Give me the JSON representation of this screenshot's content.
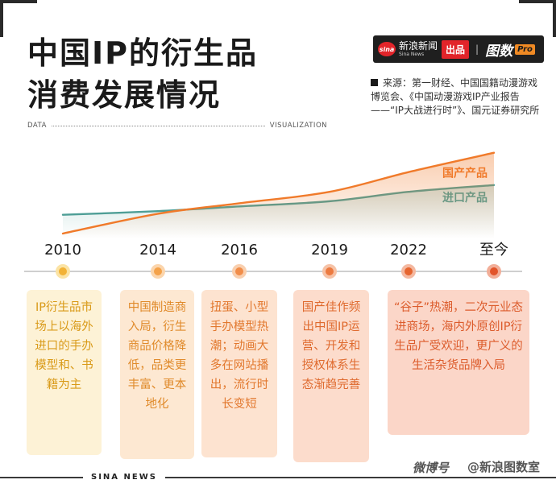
{
  "title": {
    "line1": "中国IP的衍生品",
    "line2": "消费发展情况"
  },
  "brand": {
    "sina_logo": "sina",
    "sina_cn": "新浪新闻",
    "sina_en": "Sina News",
    "chupin": "出品",
    "separator": "|",
    "tushu": "图数",
    "pro": "Pro"
  },
  "source": {
    "text": "来源：第一财经、中国国籍动漫游戏博览会、《中国动漫游戏IP产业报告——“IP大战进行时”》、国元证券研究所"
  },
  "data_row": {
    "left": "DATA",
    "right": "VISUALIZATION"
  },
  "chart_data": {
    "type": "area",
    "x": [
      "2010",
      "2014",
      "2016",
      "2019",
      "2022",
      "至今"
    ],
    "series": [
      {
        "name": "国产产品",
        "values": [
          0.0,
          0.38,
          0.58,
          0.8,
          1.18,
          1.55
        ]
      },
      {
        "name": "进口产品",
        "values": [
          0.36,
          0.43,
          0.52,
          0.62,
          0.8,
          0.93
        ]
      }
    ],
    "ylim": [
      0,
      1.7
    ],
    "colors": {
      "国产产品": "#f07a2a",
      "进口产品": "#4e9e96"
    }
  },
  "milestones": [
    {
      "year": "2010",
      "text": "IP衍生品市场上以海外进口的手办模型和、书籍为主",
      "card_bg": "#fdf2d6",
      "text_color": "#d99a18",
      "dot_color": "#f2b236",
      "ring_color": "#fbe3a4"
    },
    {
      "year": "2014",
      "text": "中国制造商入局，衍生商品价格降低，品类更丰富、更本地化",
      "card_bg": "#fde8d2",
      "text_color": "#e08a2a",
      "dot_color": "#f4a24a",
      "ring_color": "#fbd5ac"
    },
    {
      "year": "2016",
      "text": "扭蛋、小型手办模型热潮；动画大多在网站播出，流行时长变短",
      "card_bg": "#fde3d0",
      "text_color": "#e2782e",
      "dot_color": "#f18d4a",
      "ring_color": "#f9cfae"
    },
    {
      "year": "2019",
      "text": "国产佳作频出中国IP运营、开发和授权体系生态渐趋完善",
      "card_bg": "#fcdccc",
      "text_color": "#df6a2e",
      "dot_color": "#ec7a40",
      "ring_color": "#f6c2a6"
    },
    {
      "year": "2022",
      "text": "“谷子”热潮，二次元业态进商场，海内外原创IP衍生品广受欢迎，更广义的生活杂货品牌入局",
      "card_bg": "#fbd6c8",
      "text_color": "#dc5c2c",
      "dot_color": "#e6652f",
      "ring_color": "#f4b8a0"
    },
    {
      "year": "至今",
      "dot_color": "#e2542a",
      "ring_color": "#f2ae98"
    }
  ],
  "footer": {
    "label": "SINA NEWS",
    "weibo": "微博号",
    "handle": "@新浪图数室"
  }
}
